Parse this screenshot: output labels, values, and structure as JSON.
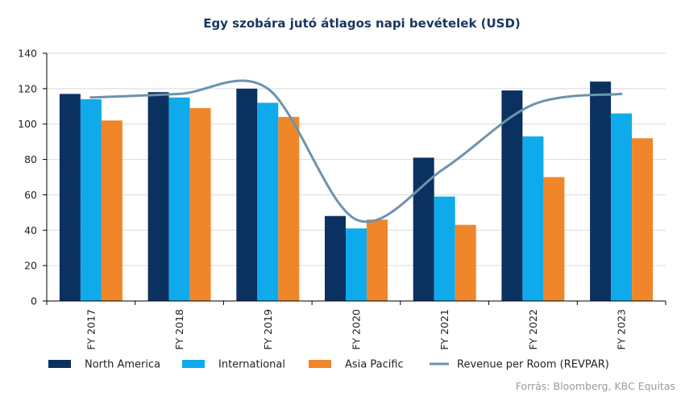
{
  "chart_data": {
    "type": "bar",
    "title": "Egy szobára jutó átlagos napi bevételek  (USD)",
    "categories": [
      "FY 2017",
      "FY 2018",
      "FY 2019",
      "FY 2020",
      "FY 2021",
      "FY 2022",
      "FY 2023"
    ],
    "series": [
      {
        "name": "North America",
        "type": "bar",
        "color": "#0b3160",
        "values": [
          117,
          118,
          120,
          48,
          81,
          119,
          124
        ]
      },
      {
        "name": "International",
        "type": "bar",
        "color": "#0eaaec",
        "values": [
          114,
          115,
          112,
          41,
          59,
          93,
          106
        ]
      },
      {
        "name": "Asia Pacific",
        "type": "bar",
        "color": "#f0862a",
        "values": [
          102,
          109,
          104,
          46,
          43,
          70,
          92
        ]
      },
      {
        "name": "Revenue per Room (REVPAR)",
        "type": "line",
        "color": "#6d93ad",
        "values": [
          115,
          117,
          120,
          46,
          75,
          111,
          117
        ]
      }
    ],
    "ylim": [
      0,
      140
    ],
    "yticks": [
      0,
      20,
      40,
      60,
      80,
      100,
      120,
      140
    ],
    "grid": true,
    "legend": "bottom",
    "source": "Forrás: Bloomberg,  KBC Equitas"
  }
}
